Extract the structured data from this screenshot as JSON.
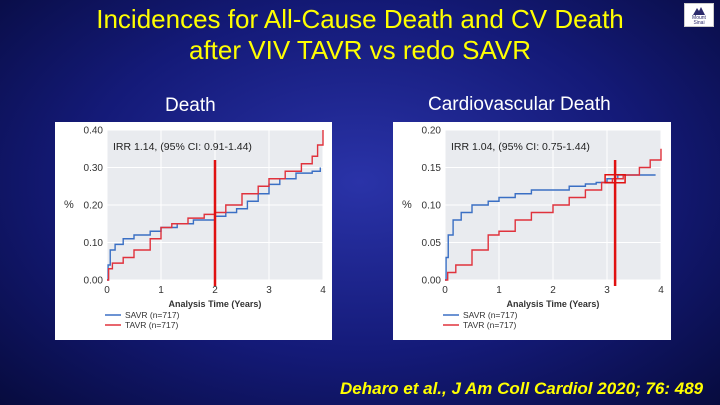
{
  "slide": {
    "title_line1": "Incidences for All-Cause Death and CV Death",
    "title_line2": "after VIV TAVR vs redo SAVR",
    "logo_text_1": "Mount",
    "logo_text_2": "Sinai",
    "citation": "Deharo et al., J Am Coll Cardiol 2020; 76: 489"
  },
  "colors": {
    "title": "#ffff00",
    "savr": "#3a6fc4",
    "tavr": "#e0323c",
    "marker": "#e01010",
    "plot_bg": "#e9ebef"
  },
  "chart_data": [
    {
      "type": "line",
      "heading": "Death",
      "annotation": "IRR 1.14, (95% CI: 0.91-1.44)",
      "ylabel": "%",
      "xlabel": "Analysis Time (Years)",
      "xlim": [
        0,
        4
      ],
      "ylim": [
        0,
        0.4
      ],
      "x_ticks": [
        "0",
        "1",
        "2",
        "3",
        "4"
      ],
      "y_ticks": [
        "0.00",
        "0.10",
        "0.20",
        "0.30",
        "0.40"
      ],
      "grid": true,
      "legend_position": "bottom-left",
      "marker_x": 2.0,
      "series": [
        {
          "name": "SAVR (n=717)",
          "color": "#3a6fc4",
          "points": [
            [
              0,
              0
            ],
            [
              0.02,
              0.04
            ],
            [
              0.06,
              0.08
            ],
            [
              0.15,
              0.095
            ],
            [
              0.3,
              0.11
            ],
            [
              0.5,
              0.12
            ],
            [
              0.8,
              0.13
            ],
            [
              1.0,
              0.14
            ],
            [
              1.3,
              0.15
            ],
            [
              1.6,
              0.16
            ],
            [
              2.0,
              0.17
            ],
            [
              2.2,
              0.18
            ],
            [
              2.4,
              0.19
            ],
            [
              2.6,
              0.21
            ],
            [
              2.8,
              0.23
            ],
            [
              3.0,
              0.255
            ],
            [
              3.2,
              0.27
            ],
            [
              3.5,
              0.285
            ],
            [
              3.8,
              0.29
            ],
            [
              3.95,
              0.3
            ]
          ]
        },
        {
          "name": "TAVR (n=717)",
          "color": "#e0323c",
          "points": [
            [
              0,
              0
            ],
            [
              0.03,
              0.03
            ],
            [
              0.1,
              0.045
            ],
            [
              0.3,
              0.06
            ],
            [
              0.5,
              0.08
            ],
            [
              0.8,
              0.11
            ],
            [
              1.0,
              0.14
            ],
            [
              1.2,
              0.15
            ],
            [
              1.5,
              0.165
            ],
            [
              1.8,
              0.175
            ],
            [
              2.0,
              0.18
            ],
            [
              2.2,
              0.2
            ],
            [
              2.5,
              0.23
            ],
            [
              2.8,
              0.25
            ],
            [
              3.0,
              0.27
            ],
            [
              3.3,
              0.29
            ],
            [
              3.6,
              0.31
            ],
            [
              3.8,
              0.33
            ],
            [
              3.9,
              0.36
            ],
            [
              4.0,
              0.4
            ]
          ]
        }
      ]
    },
    {
      "type": "line",
      "heading": "Cardiovascular Death",
      "annotation": "IRR 1.04, (95% CI: 0.75-1.44)",
      "ylabel": "%",
      "xlabel": "Analysis Time (Years)",
      "xlim": [
        0,
        4
      ],
      "ylim": [
        0,
        0.2
      ],
      "x_ticks": [
        "0",
        "1",
        "2",
        "3",
        "4"
      ],
      "y_ticks": [
        "0.00",
        "0.05",
        "0.10",
        "0.15",
        "0.20"
      ],
      "grid": true,
      "legend_position": "bottom-left",
      "marker_x": 3.15,
      "series": [
        {
          "name": "SAVR (n=717)",
          "color": "#3a6fc4",
          "points": [
            [
              0,
              0
            ],
            [
              0.02,
              0.03
            ],
            [
              0.06,
              0.06
            ],
            [
              0.15,
              0.08
            ],
            [
              0.3,
              0.09
            ],
            [
              0.5,
              0.1
            ],
            [
              0.8,
              0.105
            ],
            [
              1.0,
              0.11
            ],
            [
              1.3,
              0.115
            ],
            [
              1.6,
              0.12
            ],
            [
              2.0,
              0.12
            ],
            [
              2.3,
              0.125
            ],
            [
              2.6,
              0.128
            ],
            [
              2.8,
              0.13
            ],
            [
              3.0,
              0.135
            ],
            [
              3.2,
              0.14
            ],
            [
              3.5,
              0.14
            ],
            [
              3.9,
              0.14
            ]
          ]
        },
        {
          "name": "TAVR (n=717)",
          "color": "#e0323c",
          "points": [
            [
              0,
              0
            ],
            [
              0.05,
              0.01
            ],
            [
              0.2,
              0.02
            ],
            [
              0.5,
              0.04
            ],
            [
              0.8,
              0.06
            ],
            [
              1.0,
              0.065
            ],
            [
              1.3,
              0.08
            ],
            [
              1.6,
              0.09
            ],
            [
              2.0,
              0.1
            ],
            [
              2.3,
              0.11
            ],
            [
              2.6,
              0.12
            ],
            [
              2.9,
              0.13
            ],
            [
              3.1,
              0.135
            ],
            [
              3.3,
              0.14
            ],
            [
              3.6,
              0.15
            ],
            [
              3.8,
              0.16
            ],
            [
              4.0,
              0.175
            ]
          ]
        }
      ]
    }
  ]
}
